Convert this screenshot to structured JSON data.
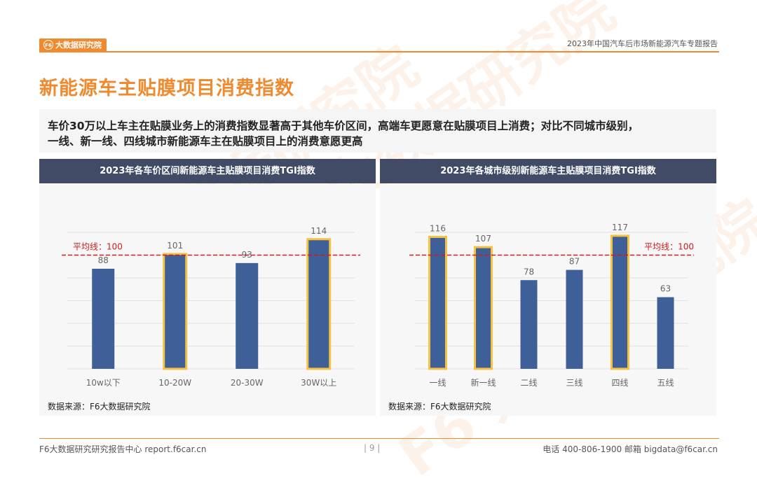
{
  "header": {
    "logo_text": "大数据研究院",
    "logo_mark": "F6",
    "report_title": "2023年中国汽车后市场新能源汽车专题报告"
  },
  "page_title": "新能源车主贴膜项目消费指数",
  "summary": {
    "line1": "车价30万以上车主在贴膜业务上的消费指数显著高于其他车价区间，高端车更愿意在贴膜项目上消费；对比不同城市级别，",
    "line2": "一线、新一线、四线城市新能源车主在贴膜项目上的消费意愿更高"
  },
  "colors": {
    "accent": "#f08a2e",
    "bar": "#3f5f99",
    "bar_highlight": "#f5c242",
    "avg_line": "#d11a1a",
    "panel_head": "#414b66"
  },
  "chart_data": [
    {
      "type": "bar",
      "title": "2023年各车价区间新能源车主贴膜项目消费TGI指数",
      "categories": [
        "10w以下",
        "10-20W",
        "20-30W",
        "30W以上"
      ],
      "values": [
        88,
        101,
        93,
        114
      ],
      "highlighted": [
        false,
        true,
        false,
        true
      ],
      "reference_line": {
        "value": 100,
        "label": "平均线：100"
      },
      "ylim": [
        0,
        120
      ],
      "grid": true,
      "source": "数据来源：F6大数据研究院"
    },
    {
      "type": "bar",
      "title": "2023年各城市级别新能源车主贴膜项目消费TGI指数",
      "categories": [
        "一线",
        "新一线",
        "二线",
        "三线",
        "四线",
        "五线"
      ],
      "values": [
        116,
        107,
        78,
        87,
        117,
        63
      ],
      "highlighted": [
        true,
        true,
        false,
        false,
        true,
        false
      ],
      "reference_line": {
        "value": 100,
        "label": "平均线：100"
      },
      "ylim": [
        0,
        120
      ],
      "grid": true,
      "source": "数据来源：F6大数据研究院"
    }
  ],
  "footer": {
    "left": "F6大数据研究研究报告中心 report.f6car.cn",
    "page_number": "| 9 |",
    "right": "电话 400-806-1900  邮箱 bigdata@f6car.cn"
  },
  "watermark": "F6 大数据研究院"
}
